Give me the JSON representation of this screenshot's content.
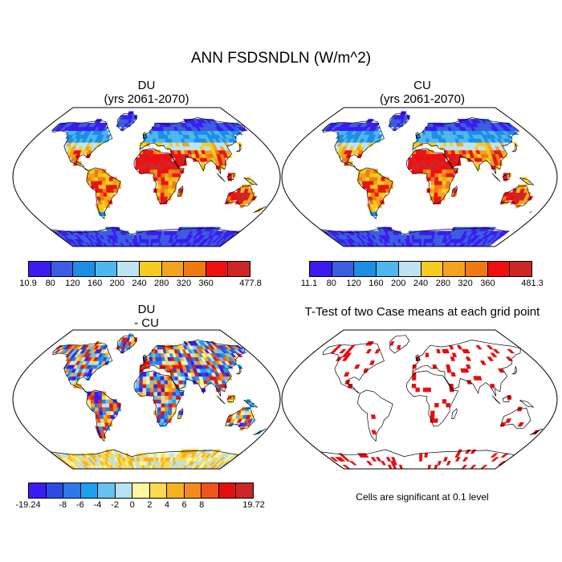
{
  "title": "ANN FSDSNDLN (W/m^2)",
  "panels": {
    "du": {
      "line1": "DU",
      "line2": "(yrs 2061-2070)"
    },
    "cu": {
      "line1": "CU",
      "line2": "(yrs 2061-2070)"
    },
    "diff": {
      "line1": "DU",
      "line2": "- CU"
    },
    "ttest": {
      "title": "T-Test of two Case means at each grid point",
      "note": "Cells are significant at 0.1 level"
    }
  },
  "colorbars": {
    "du": {
      "colors": [
        "#3b1cf0",
        "#3b5ee0",
        "#1c8ee6",
        "#4db8f0",
        "#bfe3f2",
        "#f5cc1f",
        "#f5a21f",
        "#f07a12",
        "#f00f0f",
        "#cc2626"
      ],
      "labels": [
        "10.9",
        "80",
        "120",
        "160",
        "200",
        "240",
        "280",
        "320",
        "360",
        "477.8"
      ]
    },
    "cu": {
      "colors": [
        "#3b1cf0",
        "#3b5ee0",
        "#1c8ee6",
        "#4db8f0",
        "#bfe3f2",
        "#f5cc1f",
        "#f5a21f",
        "#f07a12",
        "#f00f0f",
        "#cc2626"
      ],
      "labels": [
        "11.1",
        "80",
        "120",
        "160",
        "200",
        "240",
        "280",
        "320",
        "360",
        "481.3"
      ]
    },
    "diff": {
      "colors": [
        "#3b1cf0",
        "#2e4ae6",
        "#2e79e6",
        "#1ca1f0",
        "#66c2f0",
        "#b8e2f2",
        "#fff5a1",
        "#fcd94d",
        "#f5b21c",
        "#f58a1c",
        "#f0541c",
        "#e60f0f",
        "#cc2626"
      ],
      "labels": [
        "-19.24",
        "",
        "-8",
        "-6",
        "-4",
        "-2",
        "0",
        "2",
        "4",
        "6",
        "8",
        "",
        "19.72"
      ]
    }
  }
}
